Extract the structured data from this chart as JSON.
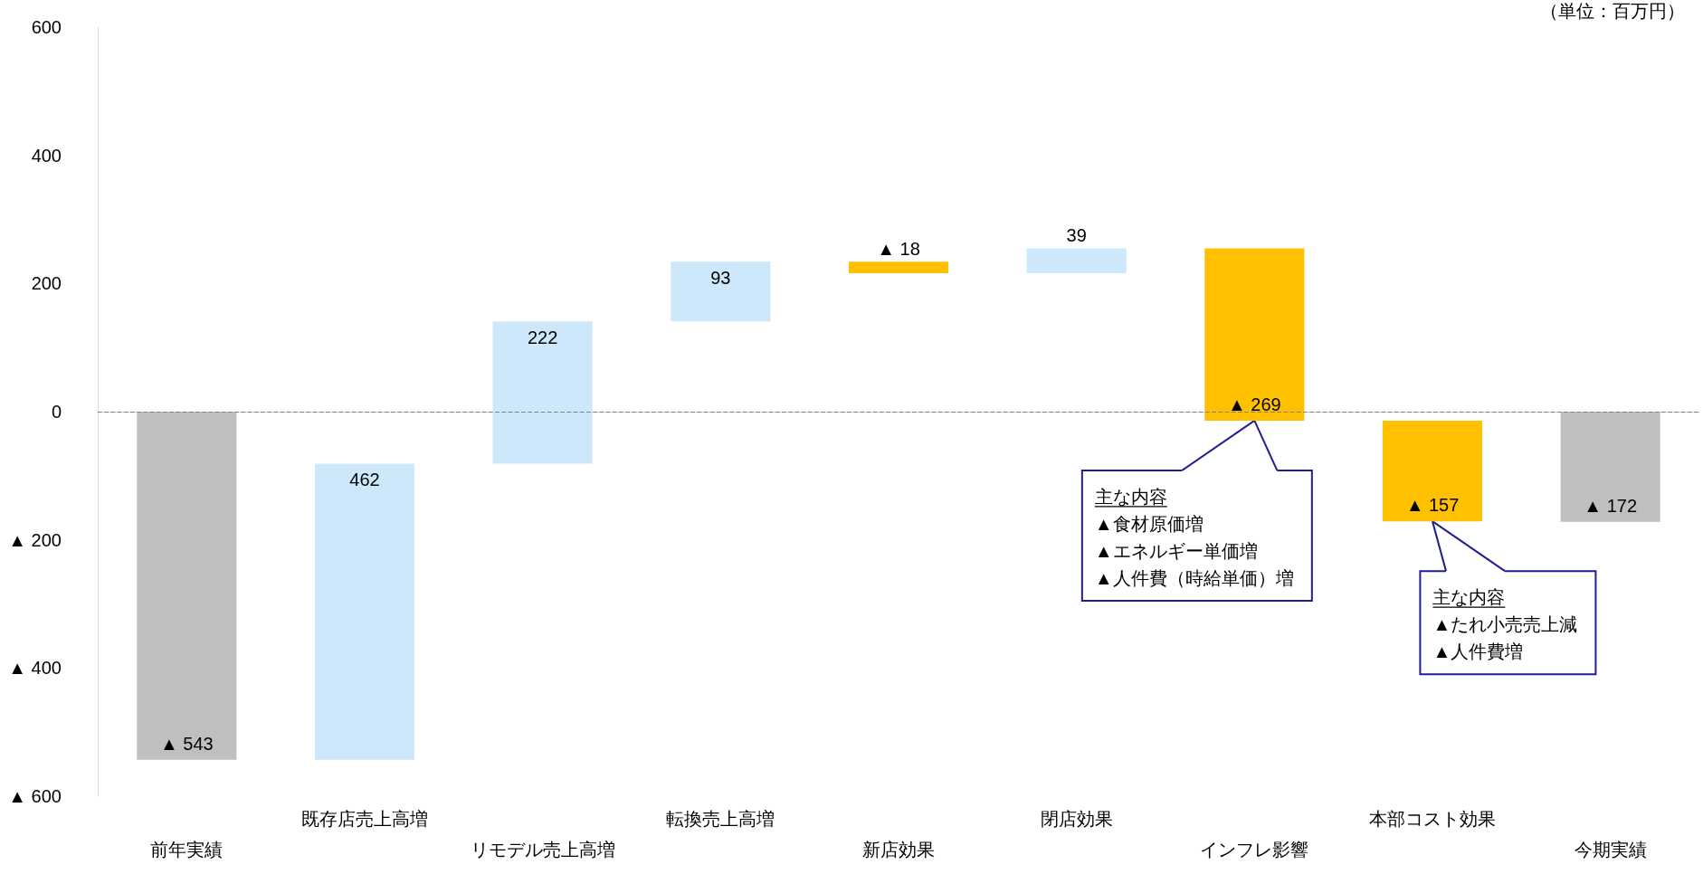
{
  "chart_data": {
    "type": "bar",
    "categories": [
      "前年実績",
      "既存店売上高増",
      "リモデル売上高増",
      "転換売上高増",
      "新店効果",
      "閉店効果",
      "インフレ影響",
      "本部コスト効果",
      "今期実績"
    ],
    "values": [
      -543,
      462,
      222,
      93,
      -18,
      39,
      -269,
      -157,
      -172
    ],
    "base": [
      0,
      -543,
      -81,
      141,
      234,
      216,
      255,
      -14,
      0
    ],
    "colors": [
      "#bfbfbf",
      "#cce8fa",
      "#cce8fa",
      "#cce8fa",
      "#ffc000",
      "#cce8fa",
      "#ffc000",
      "#ffc000",
      "#bfbfbf"
    ],
    "value_labels": [
      "▲ 543",
      "462",
      "222",
      "93",
      "▲ 18",
      "39",
      "▲ 269",
      "▲ 157",
      "▲ 172"
    ],
    "ylim": [
      -600,
      600
    ],
    "yticks": [
      {
        "value": -600,
        "label": "▲ 600"
      },
      {
        "value": -400,
        "label": "▲ 400"
      },
      {
        "value": -200,
        "label": "▲ 200"
      },
      0,
      200,
      400,
      600
    ],
    "grid": false,
    "ref_lines": [
      {
        "axis": "y",
        "value": 0,
        "color": "#808080",
        "line_style": "dashed"
      }
    ],
    "annotations": [
      "（単位：百万円）",
      {
        "text": "主な内容\n▲食材原価増\n▲エネルギー単価増\n▲人件費（時給単価）増",
        "x": "インフレ影響",
        "y": -14
      },
      {
        "text": "主な内容\n▲たれ小売売上減\n▲人件費増",
        "x": "本部コスト効果",
        "y": -171
      }
    ]
  }
}
